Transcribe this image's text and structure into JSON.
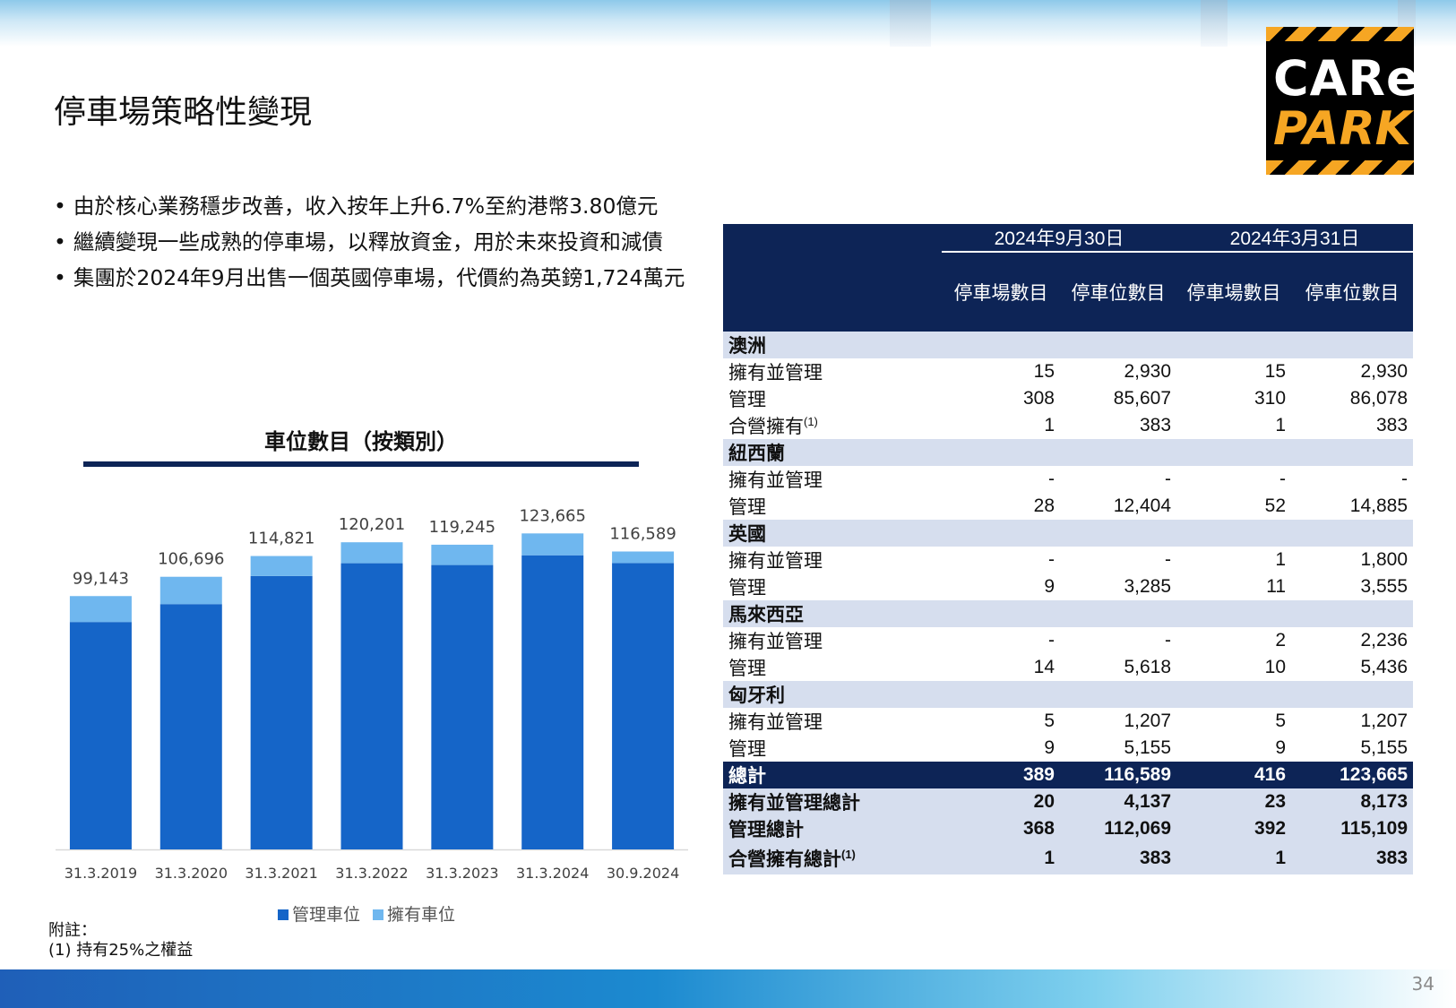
{
  "header": {
    "title": "停車場策略性變現"
  },
  "logo": {
    "line1": "CARe",
    "line2": "PARK"
  },
  "bullets": [
    "由於核心業務穩步改善，收入按年上升6.7%至約港幣3.80億元",
    "繼續變現一些成熟的停車場，以釋放資金，用於未來投資和減債",
    "集團於2024年9月出售一個英國停車場，代價約為英鎊1,724萬元"
  ],
  "chart_data": {
    "type": "bar",
    "stacked": true,
    "title": "車位數目（按類別）",
    "categories": [
      "31.3.2019",
      "31.3.2020",
      "31.3.2021",
      "31.3.2022",
      "31.3.2023",
      "31.3.2024",
      "30.9.2024"
    ],
    "series": [
      {
        "name": "管理車位",
        "color": "#1565c8",
        "values": [
          89000,
          96000,
          107000,
          112000,
          111300,
          115109,
          112069
        ]
      },
      {
        "name": "擁有車位",
        "color": "#6fb7ef",
        "values": [
          10143,
          10696,
          7821,
          8201,
          7945,
          8556,
          4520
        ]
      }
    ],
    "totals": [
      "99,143",
      "106,696",
      "114,821",
      "120,201",
      "119,245",
      "123,665",
      "116,589"
    ],
    "ylim": [
      0,
      135000
    ],
    "grid": false,
    "legend": "bottom"
  },
  "table": {
    "dates": [
      "2024年9月30日",
      "2024年3月31日"
    ],
    "columns": [
      "停車場數目",
      "停車位數目",
      "停車場數目",
      "停車位數目"
    ],
    "regions": [
      {
        "name": "澳洲",
        "rows": [
          {
            "label": "擁有並管理",
            "values": [
              "15",
              "2,930",
              "15",
              "2,930"
            ]
          },
          {
            "label": "管理",
            "values": [
              "308",
              "85,607",
              "310",
              "86,078"
            ]
          },
          {
            "label": "合營擁有",
            "sup": "(1)",
            "values": [
              "1",
              "383",
              "1",
              "383"
            ]
          }
        ]
      },
      {
        "name": "紐西蘭",
        "rows": [
          {
            "label": "擁有並管理",
            "values": [
              "-",
              "-",
              "-",
              "-"
            ]
          },
          {
            "label": "管理",
            "values": [
              "28",
              "12,404",
              "52",
              "14,885"
            ]
          }
        ]
      },
      {
        "name": "英國",
        "rows": [
          {
            "label": "擁有並管理",
            "values": [
              "-",
              "-",
              "1",
              "1,800"
            ]
          },
          {
            "label": "管理",
            "values": [
              "9",
              "3,285",
              "11",
              "3,555"
            ]
          }
        ]
      },
      {
        "name": "馬來西亞",
        "rows": [
          {
            "label": "擁有並管理",
            "values": [
              "-",
              "-",
              "2",
              "2,236"
            ]
          },
          {
            "label": "管理",
            "values": [
              "14",
              "5,618",
              "10",
              "5,436"
            ]
          }
        ]
      },
      {
        "name": "匈牙利",
        "rows": [
          {
            "label": "擁有並管理",
            "values": [
              "5",
              "1,207",
              "5",
              "1,207"
            ]
          },
          {
            "label": "管理",
            "values": [
              "9",
              "5,155",
              "9",
              "5,155"
            ]
          }
        ]
      }
    ],
    "total": {
      "label": "總計",
      "values": [
        "389",
        "116,589",
        "416",
        "123,665"
      ]
    },
    "summary": [
      {
        "label": "擁有並管理總計",
        "values": [
          "20",
          "4,137",
          "23",
          "8,173"
        ]
      },
      {
        "label": "管理總計",
        "values": [
          "368",
          "112,069",
          "392",
          "115,109"
        ]
      },
      {
        "label": "合營擁有總計",
        "sup": "(1)",
        "values": [
          "1",
          "383",
          "1",
          "383"
        ]
      }
    ]
  },
  "footnote": {
    "heading": "附註：",
    "text": "(1)  持有25%之權益"
  },
  "page_number": "34"
}
